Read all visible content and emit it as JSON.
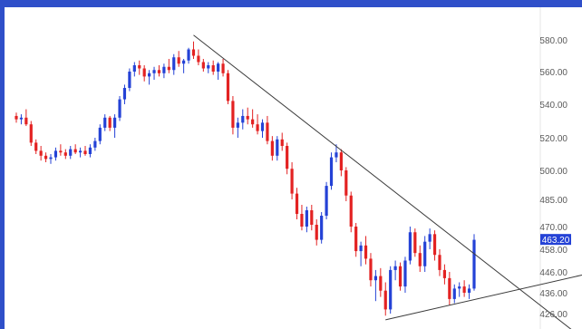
{
  "colors": {
    "frame": "#2f4fc9",
    "up": "#2442d6",
    "down": "#e32222",
    "trendline": "#3a3a3a",
    "axis_text": "#5a5a5a",
    "price_badge_bg": "#2442d6",
    "price_badge_text": "#ffffff"
  },
  "chart_data": {
    "type": "candlestick",
    "title": "",
    "xlabel": "",
    "ylabel": "",
    "y_axis": {
      "position": "right",
      "ticks": [
        {
          "value": 580,
          "label": "580.00"
        },
        {
          "value": 560,
          "label": "560.00"
        },
        {
          "value": 540,
          "label": "540.00"
        },
        {
          "value": 520,
          "label": "520.00"
        },
        {
          "value": 500,
          "label": "500.00"
        },
        {
          "value": 485,
          "label": "485.00"
        },
        {
          "value": 470,
          "label": "470.00"
        },
        {
          "value": 458,
          "label": "458.00"
        },
        {
          "value": 446,
          "label": "446.00"
        },
        {
          "value": 436,
          "label": "436.00"
        },
        {
          "value": 426,
          "label": "426.00"
        }
      ]
    },
    "last_price": {
      "value": 463.2,
      "label": "463.20"
    },
    "candles": [
      [
        533,
        535,
        529,
        531
      ],
      [
        531,
        534,
        528,
        532
      ],
      [
        532,
        537,
        527,
        528
      ],
      [
        528,
        530,
        515,
        517
      ],
      [
        517,
        519,
        510,
        512
      ],
      [
        512,
        515,
        506,
        509
      ],
      [
        509,
        511,
        505,
        507
      ],
      [
        507,
        510,
        504,
        508
      ],
      [
        508,
        514,
        506,
        512
      ],
      [
        512,
        516,
        509,
        511
      ],
      [
        511,
        513,
        507,
        509
      ],
      [
        509,
        515,
        507,
        513
      ],
      [
        513,
        516,
        510,
        511
      ],
      [
        511,
        514,
        508,
        512
      ],
      [
        512,
        515,
        509,
        510
      ],
      [
        510,
        516,
        508,
        514
      ],
      [
        514,
        520,
        512,
        518
      ],
      [
        518,
        528,
        516,
        526
      ],
      [
        526,
        534,
        524,
        532
      ],
      [
        532,
        533,
        524,
        526
      ],
      [
        526,
        534,
        520,
        532
      ],
      [
        532,
        545,
        530,
        543
      ],
      [
        543,
        552,
        540,
        550
      ],
      [
        550,
        562,
        548,
        560
      ],
      [
        560,
        566,
        557,
        564
      ],
      [
        564,
        567,
        558,
        562
      ],
      [
        562,
        564,
        554,
        557
      ],
      [
        557,
        561,
        552,
        559
      ],
      [
        559,
        563,
        555,
        561
      ],
      [
        561,
        564,
        557,
        559
      ],
      [
        559,
        565,
        556,
        563
      ],
      [
        563,
        568,
        559,
        561
      ],
      [
        561,
        571,
        558,
        569
      ],
      [
        569,
        573,
        563,
        565
      ],
      [
        565,
        568,
        559,
        567
      ],
      [
        567,
        575,
        565,
        574
      ],
      [
        574,
        579,
        568,
        570
      ],
      [
        570,
        574,
        564,
        566
      ],
      [
        566,
        568,
        560,
        562
      ],
      [
        562,
        566,
        559,
        564
      ],
      [
        564,
        567,
        558,
        560
      ],
      [
        560,
        566,
        555,
        565
      ],
      [
        565,
        568,
        557,
        559
      ],
      [
        559,
        561,
        540,
        542
      ],
      [
        542,
        545,
        522,
        526
      ],
      [
        526,
        532,
        520,
        529
      ],
      [
        529,
        537,
        525,
        533
      ],
      [
        533,
        538,
        528,
        531
      ],
      [
        531,
        537,
        526,
        528
      ],
      [
        528,
        534,
        522,
        524
      ],
      [
        524,
        531,
        520,
        529
      ],
      [
        529,
        533,
        516,
        518
      ],
      [
        518,
        521,
        506,
        509
      ],
      [
        509,
        521,
        506,
        519
      ],
      [
        519,
        523,
        512,
        515
      ],
      [
        515,
        517,
        498,
        501
      ],
      [
        501,
        505,
        485,
        488
      ],
      [
        488,
        491,
        474,
        477
      ],
      [
        477,
        482,
        468,
        470
      ],
      [
        470,
        481,
        467,
        479
      ],
      [
        479,
        482,
        468,
        471
      ],
      [
        471,
        474,
        460,
        463
      ],
      [
        463,
        478,
        461,
        476
      ],
      [
        476,
        494,
        474,
        492
      ],
      [
        492,
        511,
        490,
        508
      ],
      [
        508,
        516,
        505,
        511
      ],
      [
        511,
        513,
        497,
        500
      ],
      [
        500,
        502,
        484,
        487
      ],
      [
        487,
        489,
        467,
        470
      ],
      [
        470,
        472,
        454,
        457
      ],
      [
        457,
        462,
        449,
        460
      ],
      [
        460,
        465,
        450,
        453
      ],
      [
        453,
        456,
        439,
        442
      ],
      [
        442,
        447,
        432,
        444
      ],
      [
        444,
        448,
        434,
        437
      ],
      [
        437,
        441,
        425,
        428
      ],
      [
        428,
        449,
        426,
        447
      ],
      [
        447,
        452,
        442,
        449
      ],
      [
        449,
        451,
        437,
        439
      ],
      [
        439,
        454,
        436,
        452
      ],
      [
        452,
        470,
        450,
        467
      ],
      [
        467,
        469,
        454,
        456
      ],
      [
        456,
        460,
        446,
        449
      ],
      [
        449,
        465,
        446,
        462
      ],
      [
        462,
        469,
        458,
        466
      ],
      [
        466,
        468,
        452,
        455
      ],
      [
        455,
        458,
        444,
        447
      ],
      [
        447,
        450,
        440,
        443
      ],
      [
        443,
        446,
        430,
        433
      ],
      [
        433,
        440,
        431,
        438
      ],
      [
        438,
        441,
        434,
        439
      ],
      [
        439,
        442,
        434,
        436
      ],
      [
        436,
        440,
        433,
        438
      ],
      [
        438,
        466,
        437,
        463
      ]
    ],
    "trendlines": [
      {
        "from": {
          "index": 36,
          "value": 583
        },
        "to": {
          "index": 101,
          "value": 440
        }
      },
      {
        "from": {
          "index": 75,
          "value": 423
        },
        "to": {
          "index": 101,
          "value": 437
        }
      }
    ],
    "grid": false,
    "legend": "none"
  }
}
